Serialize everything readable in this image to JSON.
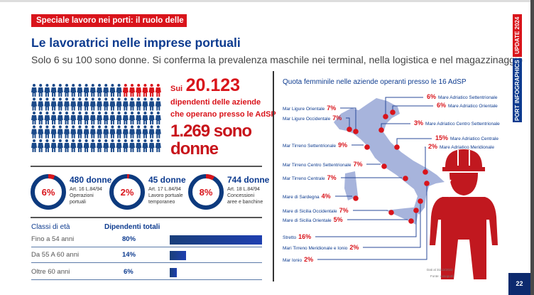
{
  "header": {
    "tag": "Speciale lavoro nei porti: il ruolo delle donne",
    "title": "Le lavoratrici nelle imprese portuali",
    "subtitle": "Solo 6 su 100 sono donne. Si conferma la prevalenza maschile nei terminal, nella logistica e nel magazzinaggio"
  },
  "side": {
    "update": "UPDATE 2024",
    "brand": "PORT INFOGRAPHICS"
  },
  "pictogram": {
    "total_icons": 100,
    "women_icons": 6,
    "men_color": "#1b4a8a",
    "women_color": "#d9141b"
  },
  "summary": {
    "sui": "Sui",
    "total": "20.123",
    "line1": "dipendenti delle aziende",
    "line2": "che operano presso le AdSP",
    "women_line1": "1.269 sono",
    "women_line2": "donne"
  },
  "donuts": [
    {
      "pct": "6%",
      "value": 6,
      "count": "480 donne",
      "art": "Art. 16 L.84/94",
      "desc1": "Operazioni",
      "desc2": "portuali"
    },
    {
      "pct": "2%",
      "value": 2,
      "count": "45 donne",
      "art": "Art. 17 L.84/94",
      "desc1": "Lavoro portuale",
      "desc2": "temporaneo"
    },
    {
      "pct": "8%",
      "value": 8,
      "count": "744 donne",
      "art": "Art. 18 L.84/94",
      "desc1": "Concessioni",
      "desc2": "aree e banchine"
    }
  ],
  "age_table": {
    "headers": [
      "Classi di età",
      "Dipendenti totali"
    ],
    "rows": [
      {
        "label": "Fino a 54 anni",
        "pct": "80%",
        "value": 80
      },
      {
        "label": "Da 55 A 60 anni",
        "pct": "14%",
        "value": 14
      },
      {
        "label": "Oltre 60 anni",
        "pct": "6%",
        "value": 6
      }
    ]
  },
  "map": {
    "title": "Quota femminile nelle aziende operanti presso le 16 AdSP",
    "left_labels": [
      {
        "name": "Mar Ligure Orientale",
        "pct": "7%"
      },
      {
        "name": "Mar Ligure Occidentale",
        "pct": "7%"
      },
      {
        "name": "Mar Tirreno Settentrionale",
        "pct": "9%"
      },
      {
        "name": "Mar Tirreno Centro Settentrionale",
        "pct": "7%"
      },
      {
        "name": "Mar Tirreno Centrale",
        "pct": "7%"
      },
      {
        "name": "Mare di Sardegna",
        "pct": "4%"
      },
      {
        "name": "Mare di Sicilia Occidentale",
        "pct": "7%"
      },
      {
        "name": "Mare di Sicilia Orientale",
        "pct": "5%"
      },
      {
        "name": "Stretto",
        "pct": "16%"
      },
      {
        "name": "Mari Tirreno Meridionale e Ionio",
        "pct": "2%"
      },
      {
        "name": "Mar Ionio",
        "pct": "2%"
      }
    ],
    "right_labels": [
      {
        "name": "Mare Adriatico Settentrionale",
        "pct": "6%"
      },
      {
        "name": "Mare Adriatico Orientale",
        "pct": "6%"
      },
      {
        "name": "Mare Adriatico Centro Settentrionale",
        "pct": "3%"
      },
      {
        "name": "Mare Adriatico Centrale",
        "pct": "15%"
      },
      {
        "name": "Mare Adriatico Meridionale",
        "pct": "2%"
      }
    ],
    "note1": "Dati al 31/12/2022",
    "note2": "Fonte: Assoporti"
  },
  "page": "22"
}
